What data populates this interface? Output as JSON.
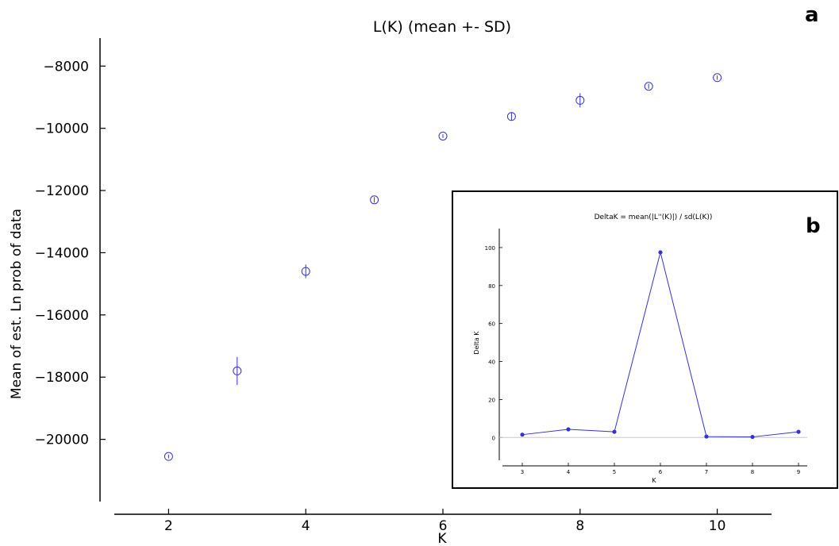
{
  "panel_labels": {
    "a": "a",
    "b": "b"
  },
  "colors": {
    "series": "#3333cc",
    "axis": "#000000",
    "zero_line": "#c8c8c8"
  },
  "chart_data": [
    {
      "type": "scatter",
      "title": "L(K) (mean +- SD)",
      "xlabel": "K",
      "ylabel": "Mean of est. Ln prob of data",
      "xlim": [
        1,
        11
      ],
      "ylim": [
        -22000,
        -7100
      ],
      "xticks": [
        2,
        4,
        6,
        8,
        10
      ],
      "yticks": [
        -8000,
        -10000,
        -12000,
        -14000,
        -16000,
        -18000,
        -20000
      ],
      "series": [
        {
          "x": [
            2,
            3,
            4,
            5,
            6,
            7,
            8,
            9,
            10
          ],
          "y": [
            -20550,
            -17800,
            -14600,
            -12300,
            -10250,
            -9620,
            -9100,
            -8650,
            -8370
          ],
          "sd": [
            60,
            450,
            220,
            90,
            60,
            120,
            230,
            80,
            70
          ]
        }
      ]
    },
    {
      "type": "line",
      "title": "DeltaK = mean(|L''(K)|) / sd(L(K))",
      "xlabel": "K",
      "ylabel": "Delta K",
      "xlim": [
        2.5,
        9.5
      ],
      "ylim": [
        -12,
        110
      ],
      "xticks": [
        3,
        4,
        5,
        6,
        7,
        8,
        9
      ],
      "yticks": [
        0,
        20,
        40,
        60,
        80,
        100
      ],
      "series": [
        {
          "x": [
            3,
            4,
            5,
            6,
            7,
            8,
            9
          ],
          "y": [
            1.5,
            4.3,
            3.0,
            97.5,
            0.5,
            0.3,
            3.0
          ]
        }
      ]
    }
  ]
}
